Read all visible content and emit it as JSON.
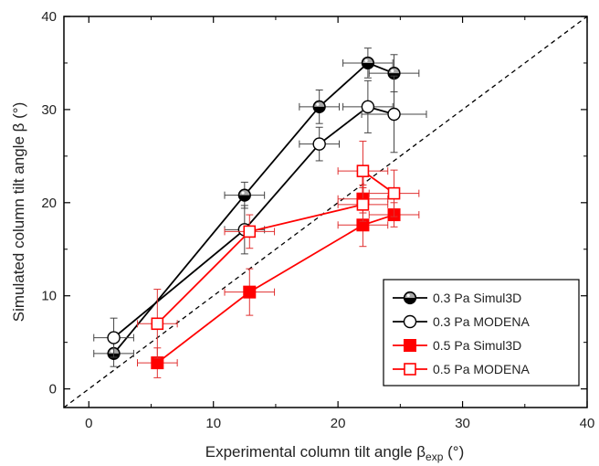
{
  "chart_data": {
    "type": "scatter",
    "title": "",
    "xlabel_main": "Experimental column tilt angle β",
    "xlabel_sub": "exp",
    "xlabel_unit": " (°)",
    "ylabel": "Simulated column tilt angle β (°)",
    "xlim": [
      -2,
      40
    ],
    "ylim": [
      -2,
      40
    ],
    "xticks": [
      "0",
      "10",
      "20",
      "30",
      "40"
    ],
    "yticks": [
      "0",
      "10",
      "20",
      "30",
      "40"
    ],
    "reference_line": "y = x (dashed)",
    "legend_position": "bottom-right",
    "series": [
      {
        "name": "0.3 Pa Simul3D",
        "color": "#000000",
        "marker": "half-filled-circle",
        "points": [
          {
            "x": 2.0,
            "y": 3.8,
            "xerr": 1.6,
            "yerr": 1.4
          },
          {
            "x": 12.5,
            "y": 20.8,
            "xerr": 1.6,
            "yerr": 1.4
          },
          {
            "x": 18.5,
            "y": 30.3,
            "xerr": 1.6,
            "yerr": 1.8
          },
          {
            "x": 22.4,
            "y": 35.0,
            "xerr": 2.0,
            "yerr": 1.6
          },
          {
            "x": 24.5,
            "y": 33.9,
            "xerr": 2.0,
            "yerr": 2.0
          }
        ]
      },
      {
        "name": "0.3 Pa MODENA",
        "color": "#000000",
        "marker": "open-circle",
        "points": [
          {
            "x": 2.0,
            "y": 5.5,
            "xerr": 1.6,
            "yerr": 2.1
          },
          {
            "x": 12.5,
            "y": 17.1,
            "xerr": 1.6,
            "yerr": 2.6
          },
          {
            "x": 18.5,
            "y": 26.3,
            "xerr": 1.6,
            "yerr": 1.8
          },
          {
            "x": 22.4,
            "y": 30.3,
            "xerr": 2.0,
            "yerr": 2.8
          },
          {
            "x": 24.5,
            "y": 29.5,
            "xerr": 2.6,
            "yerr": 4.1
          }
        ]
      },
      {
        "name": "0.5 Pa Simul3D",
        "color": "#ff0000",
        "marker": "filled-square",
        "points": [
          {
            "x": 5.5,
            "y": 2.8,
            "xerr": 1.6,
            "yerr": 1.6
          },
          {
            "x": 12.9,
            "y": 10.4,
            "xerr": 2.0,
            "yerr": 2.5
          },
          {
            "x": 22.0,
            "y": 17.6,
            "xerr": 2.0,
            "yerr": 2.3
          },
          {
            "x": 24.5,
            "y": 18.7,
            "xerr": 2.0,
            "yerr": 1.3
          },
          {
            "x": 22.0,
            "y": 20.4,
            "xerr": 2.0,
            "yerr": 1.5
          }
        ],
        "line_order": [
          0,
          1,
          2,
          3
        ]
      },
      {
        "name": "0.5 Pa MODENA",
        "color": "#ff0000",
        "marker": "open-square",
        "points": [
          {
            "x": 5.5,
            "y": 7.0,
            "xerr": 1.6,
            "yerr": 3.7
          },
          {
            "x": 12.9,
            "y": 16.9,
            "xerr": 2.0,
            "yerr": 1.8
          },
          {
            "x": 22.0,
            "y": 19.8,
            "xerr": 2.0,
            "yerr": 1.8
          },
          {
            "x": 22.0,
            "y": 23.4,
            "xerr": 2.0,
            "yerr": 3.2
          },
          {
            "x": 24.5,
            "y": 21.0,
            "xerr": 2.0,
            "yerr": 2.5
          }
        ],
        "line_order": [
          0,
          1,
          2,
          3,
          4
        ]
      }
    ]
  }
}
